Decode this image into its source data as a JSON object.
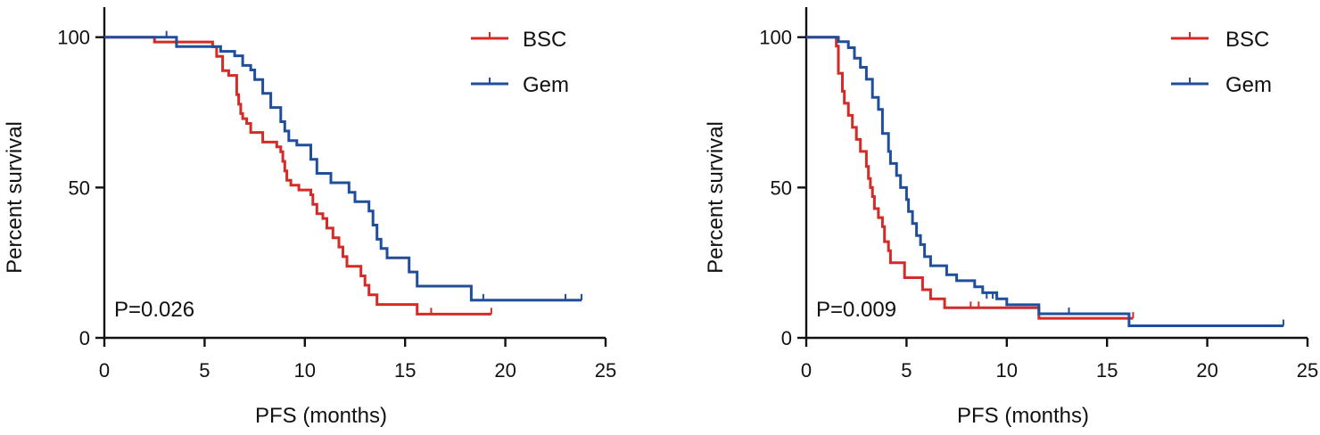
{
  "chart_data": [
    {
      "type": "line",
      "xlabel": "PFS (months)",
      "ylabel": "Percent survival",
      "xlim": [
        0,
        25
      ],
      "ylim": [
        0,
        110
      ],
      "xticks": [
        0,
        5,
        10,
        15,
        20,
        25
      ],
      "yticks": [
        0,
        50,
        100
      ],
      "annotation": "P=0.026",
      "legend_position": "top-right",
      "series": [
        {
          "name": "BSC",
          "color": "#d42b27",
          "points": [
            [
              0,
              100
            ],
            [
              2.5,
              100
            ],
            [
              2.5,
              98.4
            ],
            [
              5.4,
              98.4
            ],
            [
              5.4,
              96.8
            ],
            [
              5.6,
              96.8
            ],
            [
              5.6,
              93.6
            ],
            [
              5.9,
              93.6
            ],
            [
              5.9,
              88.9
            ],
            [
              6.2,
              88.9
            ],
            [
              6.2,
              87.3
            ],
            [
              6.6,
              87.3
            ],
            [
              6.6,
              80.9
            ],
            [
              6.7,
              80.9
            ],
            [
              6.7,
              77.7
            ],
            [
              6.8,
              77.7
            ],
            [
              6.8,
              74.6
            ],
            [
              6.9,
              74.6
            ],
            [
              6.9,
              72.9
            ],
            [
              7.1,
              72.9
            ],
            [
              7.1,
              71.3
            ],
            [
              7.3,
              71.3
            ],
            [
              7.3,
              68.3
            ],
            [
              7.9,
              68.3
            ],
            [
              7.9,
              65.1
            ],
            [
              8.6,
              65.1
            ],
            [
              8.6,
              63.5
            ],
            [
              8.8,
              63.5
            ],
            [
              8.8,
              61.9
            ],
            [
              8.9,
              61.9
            ],
            [
              8.9,
              58.7
            ],
            [
              9.0,
              58.7
            ],
            [
              9.0,
              55.5
            ],
            [
              9.1,
              55.5
            ],
            [
              9.1,
              52.4
            ],
            [
              9.3,
              52.4
            ],
            [
              9.3,
              50.8
            ],
            [
              9.7,
              50.8
            ],
            [
              9.7,
              49.2
            ],
            [
              10.3,
              49.2
            ],
            [
              10.3,
              47.6
            ],
            [
              10.4,
              47.6
            ],
            [
              10.4,
              44.4
            ],
            [
              10.6,
              44.4
            ],
            [
              10.6,
              41.3
            ],
            [
              10.9,
              41.3
            ],
            [
              10.9,
              39.7
            ],
            [
              11.1,
              39.7
            ],
            [
              11.1,
              36.5
            ],
            [
              11.4,
              36.5
            ],
            [
              11.4,
              33.3
            ],
            [
              11.7,
              33.3
            ],
            [
              11.7,
              30.2
            ],
            [
              11.9,
              30.2
            ],
            [
              11.9,
              27.0
            ],
            [
              12.1,
              27.0
            ],
            [
              12.1,
              23.8
            ],
            [
              12.8,
              23.8
            ],
            [
              12.8,
              20.6
            ],
            [
              13.0,
              20.6
            ],
            [
              13.0,
              17.5
            ],
            [
              13.2,
              17.5
            ],
            [
              13.2,
              14.3
            ],
            [
              13.6,
              14.3
            ],
            [
              13.6,
              11.1
            ],
            [
              15.6,
              11.1
            ],
            [
              15.6,
              7.9
            ],
            [
              19.3,
              7.9
            ]
          ],
          "censored": [
            [
              16.3,
              7.9
            ],
            [
              19.3,
              7.9
            ]
          ]
        },
        {
          "name": "Gem",
          "color": "#1f4e9c",
          "points": [
            [
              0,
              100
            ],
            [
              3.6,
              100
            ],
            [
              3.6,
              96.9
            ],
            [
              5.8,
              96.9
            ],
            [
              5.8,
              95.3
            ],
            [
              6.5,
              95.3
            ],
            [
              6.5,
              93.8
            ],
            [
              6.9,
              93.8
            ],
            [
              6.9,
              90.6
            ],
            [
              7.3,
              90.6
            ],
            [
              7.3,
              89.1
            ],
            [
              7.5,
              89.1
            ],
            [
              7.5,
              85.9
            ],
            [
              7.9,
              85.9
            ],
            [
              7.9,
              81.3
            ],
            [
              8.3,
              81.3
            ],
            [
              8.3,
              76.6
            ],
            [
              8.8,
              76.6
            ],
            [
              8.8,
              71.9
            ],
            [
              9.0,
              71.9
            ],
            [
              9.0,
              68.8
            ],
            [
              9.2,
              68.8
            ],
            [
              9.2,
              65.6
            ],
            [
              9.6,
              65.6
            ],
            [
              9.6,
              64.1
            ],
            [
              10.3,
              64.1
            ],
            [
              10.3,
              59.4
            ],
            [
              10.6,
              59.4
            ],
            [
              10.6,
              54.7
            ],
            [
              11.3,
              54.7
            ],
            [
              11.3,
              51.6
            ],
            [
              12.2,
              51.6
            ],
            [
              12.2,
              48.4
            ],
            [
              12.5,
              48.4
            ],
            [
              12.5,
              45.3
            ],
            [
              13.2,
              45.3
            ],
            [
              13.2,
              42.2
            ],
            [
              13.4,
              42.2
            ],
            [
              13.4,
              37.5
            ],
            [
              13.6,
              37.5
            ],
            [
              13.6,
              32.8
            ],
            [
              13.8,
              32.8
            ],
            [
              13.8,
              29.7
            ],
            [
              14.1,
              29.7
            ],
            [
              14.1,
              26.6
            ],
            [
              15.2,
              26.6
            ],
            [
              15.2,
              21.9
            ],
            [
              15.6,
              21.9
            ],
            [
              15.6,
              17.2
            ],
            [
              18.3,
              17.2
            ],
            [
              18.3,
              12.5
            ],
            [
              23.8,
              12.5
            ]
          ],
          "censored": [
            [
              3.1,
              100
            ],
            [
              18.9,
              12.5
            ],
            [
              23.0,
              12.5
            ],
            [
              23.8,
              12.5
            ]
          ]
        }
      ]
    },
    {
      "type": "line",
      "xlabel": "PFS (months)",
      "ylabel": "Percent survival",
      "xlim": [
        0,
        25
      ],
      "ylim": [
        0,
        110
      ],
      "xticks": [
        0,
        5,
        10,
        15,
        20,
        25
      ],
      "yticks": [
        0,
        50,
        100
      ],
      "annotation": "P=0.009",
      "legend_position": "top-right",
      "series": [
        {
          "name": "BSC",
          "color": "#d42b27",
          "points": [
            [
              0,
              100
            ],
            [
              1.5,
              100
            ],
            [
              1.5,
              97.0
            ],
            [
              1.6,
              97.0
            ],
            [
              1.6,
              88.0
            ],
            [
              1.8,
              88.0
            ],
            [
              1.8,
              82.0
            ],
            [
              1.9,
              82.0
            ],
            [
              1.9,
              78.0
            ],
            [
              2.1,
              78.0
            ],
            [
              2.1,
              74.0
            ],
            [
              2.3,
              74.0
            ],
            [
              2.3,
              70.0
            ],
            [
              2.5,
              70.0
            ],
            [
              2.5,
              66.0
            ],
            [
              2.7,
              66.0
            ],
            [
              2.7,
              62.0
            ],
            [
              3.0,
              62.0
            ],
            [
              3.0,
              57.0
            ],
            [
              3.1,
              57.0
            ],
            [
              3.1,
              53.0
            ],
            [
              3.2,
              53.0
            ],
            [
              3.2,
              50.0
            ],
            [
              3.3,
              50.0
            ],
            [
              3.3,
              47.0
            ],
            [
              3.4,
              47.0
            ],
            [
              3.4,
              43.0
            ],
            [
              3.6,
              43.0
            ],
            [
              3.6,
              40.0
            ],
            [
              3.8,
              40.0
            ],
            [
              3.8,
              37.0
            ],
            [
              3.9,
              37.0
            ],
            [
              3.9,
              32.0
            ],
            [
              4.1,
              32.0
            ],
            [
              4.1,
              29.0
            ],
            [
              4.2,
              29.0
            ],
            [
              4.2,
              25.0
            ],
            [
              4.9,
              25.0
            ],
            [
              4.9,
              20.0
            ],
            [
              5.8,
              20.0
            ],
            [
              5.8,
              16.0
            ],
            [
              6.2,
              16.0
            ],
            [
              6.2,
              13.0
            ],
            [
              6.9,
              13.0
            ],
            [
              6.9,
              10.0
            ],
            [
              11.6,
              10.0
            ],
            [
              11.6,
              6.5
            ],
            [
              16.3,
              6.5
            ]
          ],
          "censored": [
            [
              8.2,
              10.0
            ],
            [
              8.6,
              10.0
            ],
            [
              16.3,
              6.5
            ]
          ]
        },
        {
          "name": "Gem",
          "color": "#1f4e9c",
          "points": [
            [
              0,
              100
            ],
            [
              1.6,
              100
            ],
            [
              1.6,
              98.5
            ],
            [
              2.1,
              98.5
            ],
            [
              2.1,
              96.5
            ],
            [
              2.4,
              96.5
            ],
            [
              2.4,
              93.0
            ],
            [
              2.7,
              93.0
            ],
            [
              2.7,
              90.0
            ],
            [
              3.0,
              90.0
            ],
            [
              3.0,
              86.0
            ],
            [
              3.3,
              86.0
            ],
            [
              3.3,
              80.0
            ],
            [
              3.6,
              80.0
            ],
            [
              3.6,
              76.0
            ],
            [
              3.8,
              76.0
            ],
            [
              3.8,
              68.0
            ],
            [
              4.1,
              68.0
            ],
            [
              4.1,
              62.0
            ],
            [
              4.2,
              62.0
            ],
            [
              4.2,
              58.0
            ],
            [
              4.5,
              58.0
            ],
            [
              4.5,
              54.0
            ],
            [
              4.7,
              54.0
            ],
            [
              4.7,
              50.0
            ],
            [
              5.0,
              50.0
            ],
            [
              5.0,
              46.0
            ],
            [
              5.1,
              46.0
            ],
            [
              5.1,
              42.0
            ],
            [
              5.3,
              42.0
            ],
            [
              5.3,
              38.0
            ],
            [
              5.5,
              38.0
            ],
            [
              5.5,
              34.0
            ],
            [
              5.7,
              34.0
            ],
            [
              5.7,
              31.0
            ],
            [
              5.9,
              31.0
            ],
            [
              5.9,
              27.0
            ],
            [
              6.2,
              27.0
            ],
            [
              6.2,
              24.0
            ],
            [
              7.0,
              24.0
            ],
            [
              7.0,
              21.0
            ],
            [
              7.5,
              21.0
            ],
            [
              7.5,
              19.0
            ],
            [
              8.4,
              19.0
            ],
            [
              8.4,
              17.0
            ],
            [
              8.8,
              17.0
            ],
            [
              8.8,
              15.0
            ],
            [
              9.5,
              15.0
            ],
            [
              9.5,
              13.0
            ],
            [
              10.0,
              13.0
            ],
            [
              10.0,
              11.0
            ],
            [
              11.6,
              11.0
            ],
            [
              11.6,
              8.0
            ],
            [
              16.1,
              8.0
            ],
            [
              16.1,
              4.0
            ],
            [
              23.8,
              4.0
            ]
          ],
          "censored": [
            [
              9.0,
              13.0
            ],
            [
              9.3,
              13.0
            ],
            [
              13.1,
              8.0
            ],
            [
              23.8,
              4.0
            ]
          ]
        }
      ]
    }
  ]
}
